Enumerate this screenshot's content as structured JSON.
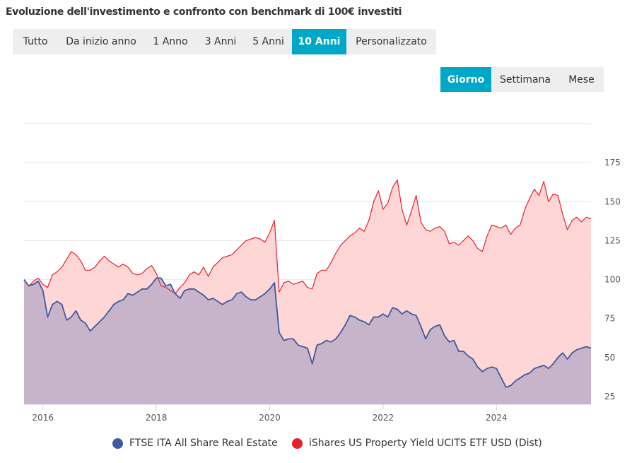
{
  "title": "Evoluzione dell'investimento e confronto con benchmark di 100€ investiti",
  "range_buttons": [
    {
      "label": "Tutto",
      "active": false
    },
    {
      "label": "Da inizio anno",
      "active": false
    },
    {
      "label": "1 Anno",
      "active": false
    },
    {
      "label": "3 Anni",
      "active": false
    },
    {
      "label": "5 Anni",
      "active": false
    },
    {
      "label": "10 Anni",
      "active": true
    },
    {
      "label": "Personalizzato",
      "active": false
    }
  ],
  "resolution_buttons": [
    {
      "label": "Giorno",
      "active": true
    },
    {
      "label": "Settimana",
      "active": false
    },
    {
      "label": "Mese",
      "active": false
    }
  ],
  "colors": {
    "accent": "#00a8c8",
    "series_blue": "#3d5a9e",
    "series_red": "#e8202a",
    "fill_blue": "#b6a8c6",
    "fill_red": "#ffcfcf",
    "grid": "#e6e6e6"
  },
  "chart_data": {
    "type": "area",
    "x_range": [
      "2015-09",
      "2025-09"
    ],
    "ylim": [
      20,
      200
    ],
    "yticks": [
      25,
      50,
      75,
      100,
      125,
      150,
      175
    ],
    "xticks": [
      {
        "label": "2016",
        "year": 2016.0
      },
      {
        "label": "2018",
        "year": 2018.0
      },
      {
        "label": "2020",
        "year": 2020.0
      },
      {
        "label": "2022",
        "year": 2022.0
      },
      {
        "label": "2024",
        "year": 2024.0
      }
    ],
    "grid": true,
    "legend_position": "bottom",
    "series": [
      {
        "name": "iShares US Property Yield UCITS ETF USD (Dist)",
        "color": "#e8202a",
        "points": [
          [
            "2015-09",
            100
          ],
          [
            "2015-10",
            96
          ],
          [
            "2015-11",
            99
          ],
          [
            "2015-12",
            101
          ],
          [
            "2016-01",
            97
          ],
          [
            "2016-02",
            95
          ],
          [
            "2016-03",
            103
          ],
          [
            "2016-04",
            105
          ],
          [
            "2016-05",
            108
          ],
          [
            "2016-06",
            113
          ],
          [
            "2016-07",
            118
          ],
          [
            "2016-08",
            116
          ],
          [
            "2016-09",
            112
          ],
          [
            "2016-10",
            106
          ],
          [
            "2016-11",
            106
          ],
          [
            "2016-12",
            108
          ],
          [
            "2017-01",
            112
          ],
          [
            "2017-02",
            115
          ],
          [
            "2017-03",
            112
          ],
          [
            "2017-04",
            110
          ],
          [
            "2017-05",
            108
          ],
          [
            "2017-06",
            110
          ],
          [
            "2017-07",
            108
          ],
          [
            "2017-08",
            104
          ],
          [
            "2017-09",
            103
          ],
          [
            "2017-10",
            104
          ],
          [
            "2017-11",
            107
          ],
          [
            "2017-12",
            109
          ],
          [
            "2018-01",
            104
          ],
          [
            "2018-02",
            96
          ],
          [
            "2018-03",
            95
          ],
          [
            "2018-04",
            93
          ],
          [
            "2018-05",
            91
          ],
          [
            "2018-06",
            95
          ],
          [
            "2018-07",
            98
          ],
          [
            "2018-08",
            103
          ],
          [
            "2018-09",
            105
          ],
          [
            "2018-10",
            103
          ],
          [
            "2018-11",
            108
          ],
          [
            "2018-12",
            102
          ],
          [
            "2019-01",
            108
          ],
          [
            "2019-02",
            111
          ],
          [
            "2019-03",
            114
          ],
          [
            "2019-04",
            115
          ],
          [
            "2019-05",
            116
          ],
          [
            "2019-06",
            119
          ],
          [
            "2019-07",
            122
          ],
          [
            "2019-08",
            125
          ],
          [
            "2019-09",
            126
          ],
          [
            "2019-10",
            127
          ],
          [
            "2019-11",
            126
          ],
          [
            "2019-12",
            124
          ],
          [
            "2020-01",
            130
          ],
          [
            "2020-02",
            138
          ],
          [
            "2020-03",
            92
          ],
          [
            "2020-04",
            98
          ],
          [
            "2020-05",
            99
          ],
          [
            "2020-06",
            97
          ],
          [
            "2020-07",
            98
          ],
          [
            "2020-08",
            99
          ],
          [
            "2020-09",
            95
          ],
          [
            "2020-10",
            94
          ],
          [
            "2020-11",
            104
          ],
          [
            "2020-12",
            106
          ],
          [
            "2021-01",
            106
          ],
          [
            "2021-02",
            111
          ],
          [
            "2021-03",
            117
          ],
          [
            "2021-04",
            122
          ],
          [
            "2021-05",
            125
          ],
          [
            "2021-06",
            128
          ],
          [
            "2021-07",
            130
          ],
          [
            "2021-08",
            133
          ],
          [
            "2021-09",
            131
          ],
          [
            "2021-10",
            138
          ],
          [
            "2021-11",
            150
          ],
          [
            "2021-12",
            157
          ],
          [
            "2022-01",
            145
          ],
          [
            "2022-02",
            149
          ],
          [
            "2022-03",
            159
          ],
          [
            "2022-04",
            164
          ],
          [
            "2022-05",
            145
          ],
          [
            "2022-06",
            135
          ],
          [
            "2022-07",
            144
          ],
          [
            "2022-08",
            154
          ],
          [
            "2022-09",
            137
          ],
          [
            "2022-10",
            132
          ],
          [
            "2022-11",
            131
          ],
          [
            "2022-12",
            133
          ],
          [
            "2023-01",
            134
          ],
          [
            "2023-02",
            131
          ],
          [
            "2023-03",
            123
          ],
          [
            "2023-04",
            124
          ],
          [
            "2023-05",
            122
          ],
          [
            "2023-06",
            125
          ],
          [
            "2023-07",
            128
          ],
          [
            "2023-08",
            125
          ],
          [
            "2023-09",
            120
          ],
          [
            "2023-10",
            118
          ],
          [
            "2023-11",
            128
          ],
          [
            "2023-12",
            135
          ],
          [
            "2024-01",
            134
          ],
          [
            "2024-02",
            133
          ],
          [
            "2024-03",
            135
          ],
          [
            "2024-04",
            129
          ],
          [
            "2024-05",
            133
          ],
          [
            "2024-06",
            135
          ],
          [
            "2024-07",
            145
          ],
          [
            "2024-08",
            152
          ],
          [
            "2024-09",
            158
          ],
          [
            "2024-10",
            154
          ],
          [
            "2024-11",
            163
          ],
          [
            "2024-12",
            150
          ],
          [
            "2025-01",
            155
          ],
          [
            "2025-02",
            154
          ],
          [
            "2025-03",
            142
          ],
          [
            "2025-04",
            132
          ],
          [
            "2025-05",
            138
          ],
          [
            "2025-06",
            140
          ],
          [
            "2025-07",
            137
          ],
          [
            "2025-08",
            140
          ],
          [
            "2025-09",
            139
          ]
        ]
      },
      {
        "name": "FTSE ITA All Share Real Estate",
        "color": "#3d5a9e",
        "points": [
          [
            "2015-09",
            100
          ],
          [
            "2015-10",
            96
          ],
          [
            "2015-11",
            97
          ],
          [
            "2015-12",
            99
          ],
          [
            "2016-01",
            93
          ],
          [
            "2016-02",
            76
          ],
          [
            "2016-03",
            84
          ],
          [
            "2016-04",
            86
          ],
          [
            "2016-05",
            84
          ],
          [
            "2016-06",
            74
          ],
          [
            "2016-07",
            76
          ],
          [
            "2016-08",
            80
          ],
          [
            "2016-09",
            74
          ],
          [
            "2016-10",
            72
          ],
          [
            "2016-11",
            67
          ],
          [
            "2016-12",
            70
          ],
          [
            "2017-01",
            73
          ],
          [
            "2017-02",
            76
          ],
          [
            "2017-03",
            80
          ],
          [
            "2017-04",
            84
          ],
          [
            "2017-05",
            86
          ],
          [
            "2017-06",
            87
          ],
          [
            "2017-07",
            91
          ],
          [
            "2017-08",
            90
          ],
          [
            "2017-09",
            92
          ],
          [
            "2017-10",
            94
          ],
          [
            "2017-11",
            94
          ],
          [
            "2017-12",
            97
          ],
          [
            "2018-01",
            101
          ],
          [
            "2018-02",
            101
          ],
          [
            "2018-03",
            96
          ],
          [
            "2018-04",
            97
          ],
          [
            "2018-05",
            91
          ],
          [
            "2018-06",
            88
          ],
          [
            "2018-07",
            93
          ],
          [
            "2018-08",
            94
          ],
          [
            "2018-09",
            94
          ],
          [
            "2018-10",
            92
          ],
          [
            "2018-11",
            90
          ],
          [
            "2018-12",
            87
          ],
          [
            "2019-01",
            88
          ],
          [
            "2019-02",
            86
          ],
          [
            "2019-03",
            84
          ],
          [
            "2019-04",
            86
          ],
          [
            "2019-05",
            87
          ],
          [
            "2019-06",
            91
          ],
          [
            "2019-07",
            92
          ],
          [
            "2019-08",
            89
          ],
          [
            "2019-09",
            87
          ],
          [
            "2019-10",
            87
          ],
          [
            "2019-11",
            89
          ],
          [
            "2019-12",
            91
          ],
          [
            "2020-01",
            94
          ],
          [
            "2020-02",
            98
          ],
          [
            "2020-03",
            66
          ],
          [
            "2020-04",
            61
          ],
          [
            "2020-05",
            62
          ],
          [
            "2020-06",
            62
          ],
          [
            "2020-07",
            58
          ],
          [
            "2020-08",
            57
          ],
          [
            "2020-09",
            56
          ],
          [
            "2020-10",
            46
          ],
          [
            "2020-11",
            58
          ],
          [
            "2020-12",
            59
          ],
          [
            "2021-01",
            61
          ],
          [
            "2021-02",
            60
          ],
          [
            "2021-03",
            62
          ],
          [
            "2021-04",
            66
          ],
          [
            "2021-05",
            71
          ],
          [
            "2021-06",
            77
          ],
          [
            "2021-07",
            76
          ],
          [
            "2021-08",
            74
          ],
          [
            "2021-09",
            73
          ],
          [
            "2021-10",
            71
          ],
          [
            "2021-11",
            76
          ],
          [
            "2021-12",
            76
          ],
          [
            "2022-01",
            78
          ],
          [
            "2022-02",
            76
          ],
          [
            "2022-03",
            82
          ],
          [
            "2022-04",
            81
          ],
          [
            "2022-05",
            78
          ],
          [
            "2022-06",
            80
          ],
          [
            "2022-07",
            78
          ],
          [
            "2022-08",
            77
          ],
          [
            "2022-09",
            70
          ],
          [
            "2022-10",
            62
          ],
          [
            "2022-11",
            68
          ],
          [
            "2022-12",
            70
          ],
          [
            "2023-01",
            71
          ],
          [
            "2023-02",
            64
          ],
          [
            "2023-03",
            60
          ],
          [
            "2023-04",
            61
          ],
          [
            "2023-05",
            54
          ],
          [
            "2023-06",
            54
          ],
          [
            "2023-07",
            51
          ],
          [
            "2023-08",
            49
          ],
          [
            "2023-09",
            44
          ],
          [
            "2023-10",
            41
          ],
          [
            "2023-11",
            43
          ],
          [
            "2023-12",
            44
          ],
          [
            "2024-01",
            43
          ],
          [
            "2024-02",
            37
          ],
          [
            "2024-03",
            31
          ],
          [
            "2024-04",
            32
          ],
          [
            "2024-05",
            35
          ],
          [
            "2024-06",
            37
          ],
          [
            "2024-07",
            39
          ],
          [
            "2024-08",
            40
          ],
          [
            "2024-09",
            43
          ],
          [
            "2024-10",
            44
          ],
          [
            "2024-11",
            45
          ],
          [
            "2024-12",
            43
          ],
          [
            "2025-01",
            46
          ],
          [
            "2025-02",
            50
          ],
          [
            "2025-03",
            53
          ],
          [
            "2025-04",
            49
          ],
          [
            "2025-05",
            53
          ],
          [
            "2025-06",
            55
          ],
          [
            "2025-07",
            56
          ],
          [
            "2025-08",
            57
          ],
          [
            "2025-09",
            56
          ]
        ]
      }
    ]
  },
  "legend": [
    {
      "label": "FTSE ITA All Share Real Estate",
      "color": "#3d5a9e"
    },
    {
      "label": "iShares US Property Yield UCITS ETF USD (Dist)",
      "color": "#e8202a"
    }
  ]
}
